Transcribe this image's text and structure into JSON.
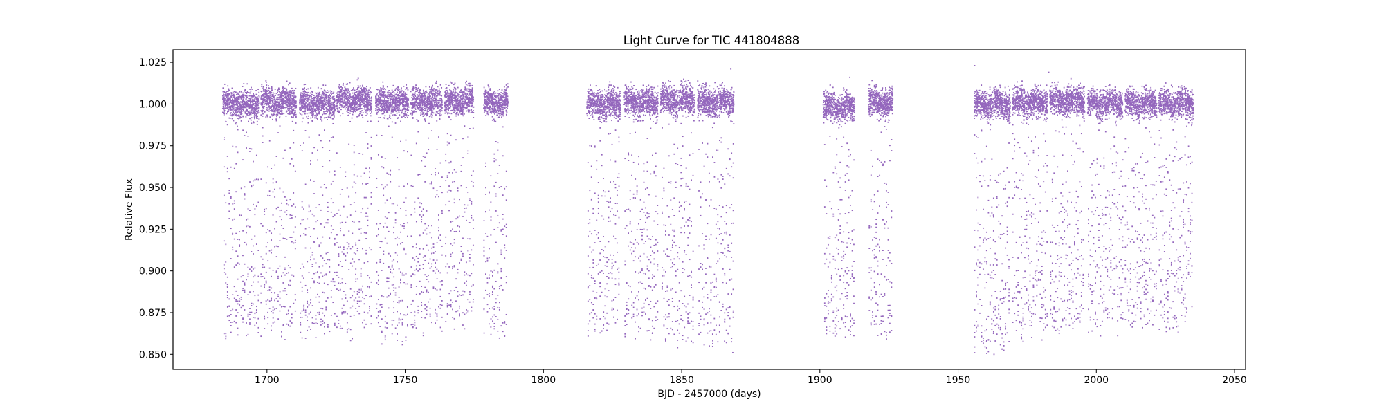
{
  "chart_data": {
    "type": "scatter",
    "title": "Light Curve for TIC 441804888",
    "xlabel": "BJD - 2457000 (days)",
    "ylabel": "Relative Flux",
    "xlim": [
      1666,
      2054
    ],
    "ylim": [
      0.841,
      1.0325
    ],
    "xticks": [
      1700,
      1750,
      1800,
      1850,
      1900,
      1950,
      2000,
      2050
    ],
    "yticks": [
      0.85,
      0.875,
      0.9,
      0.925,
      0.95,
      0.975,
      1.0,
      1.025
    ],
    "xtick_labels": [
      "1700",
      "1750",
      "1800",
      "1850",
      "1900",
      "1950",
      "2000",
      "2050"
    ],
    "ytick_labels": [
      "0.850",
      "0.875",
      "0.900",
      "0.925",
      "0.950",
      "0.975",
      "1.000",
      "1.025"
    ],
    "grid": false,
    "marker_color": "#9467bd",
    "series": [
      {
        "segments": [
          {
            "x_start": 1684.0,
            "x_end": 1697.2,
            "baseline": 1.0,
            "eclipse_depth_min": 0.857
          },
          {
            "x_start": 1697.8,
            "x_end": 1710.6,
            "baseline": 1.001,
            "eclipse_depth_min": 0.857
          },
          {
            "x_start": 1711.8,
            "x_end": 1724.6,
            "baseline": 1.0,
            "eclipse_depth_min": 0.858
          },
          {
            "x_start": 1725.2,
            "x_end": 1737.9,
            "baseline": 1.002,
            "eclipse_depth_min": 0.857
          },
          {
            "x_start": 1739.3,
            "x_end": 1751.3,
            "baseline": 1.001,
            "eclipse_depth_min": 0.855
          },
          {
            "x_start": 1752.0,
            "x_end": 1763.4,
            "baseline": 1.001,
            "eclipse_depth_min": 0.859
          },
          {
            "x_start": 1764.3,
            "x_end": 1774.8,
            "baseline": 1.002,
            "eclipse_depth_min": 0.862
          },
          {
            "x_start": 1778.4,
            "x_end": 1787.2,
            "baseline": 1.001,
            "eclipse_depth_min": 0.857
          },
          {
            "x_start": 1815.7,
            "x_end": 1827.9,
            "baseline": 1.0,
            "eclipse_depth_min": 0.858
          },
          {
            "x_start": 1829.2,
            "x_end": 1841.5,
            "baseline": 1.001,
            "eclipse_depth_min": 0.856
          },
          {
            "x_start": 1842.4,
            "x_end": 1854.7,
            "baseline": 1.002,
            "eclipse_depth_min": 0.853
          },
          {
            "x_start": 1855.8,
            "x_end": 1868.9,
            "baseline": 1.001,
            "eclipse_depth_min": 0.851
          },
          {
            "x_start": 1901.2,
            "x_end": 1912.6,
            "baseline": 0.998,
            "eclipse_depth_min": 0.856
          },
          {
            "x_start": 1917.6,
            "x_end": 1926.4,
            "baseline": 1.001,
            "eclipse_depth_min": 0.855
          },
          {
            "x_start": 1955.8,
            "x_end": 1968.9,
            "baseline": 1.0,
            "eclipse_depth_min": 0.85
          },
          {
            "x_start": 1969.7,
            "x_end": 1982.4,
            "baseline": 1.001,
            "eclipse_depth_min": 0.857
          },
          {
            "x_start": 1983.2,
            "x_end": 1995.8,
            "baseline": 1.002,
            "eclipse_depth_min": 0.858
          },
          {
            "x_start": 1996.8,
            "x_end": 2009.6,
            "baseline": 1.0,
            "eclipse_depth_min": 0.859
          },
          {
            "x_start": 2010.4,
            "x_end": 2021.9,
            "baseline": 1.0,
            "eclipse_depth_min": 0.861
          },
          {
            "x_start": 2022.6,
            "x_end": 2035.1,
            "baseline": 1.0,
            "eclipse_depth_min": 0.86
          }
        ],
        "eclipse_period_days": 0.62,
        "baseline_scatter": 0.006,
        "notable_points": [
          {
            "x": 1867.8,
            "y": 1.021
          },
          {
            "x": 1956.0,
            "y": 1.023
          },
          {
            "x": 1982.8,
            "y": 1.019
          },
          {
            "x": 1963.0,
            "y": 0.85
          },
          {
            "x": 1868.5,
            "y": 0.851
          },
          {
            "x": 1910.8,
            "y": 1.016
          }
        ]
      }
    ]
  }
}
